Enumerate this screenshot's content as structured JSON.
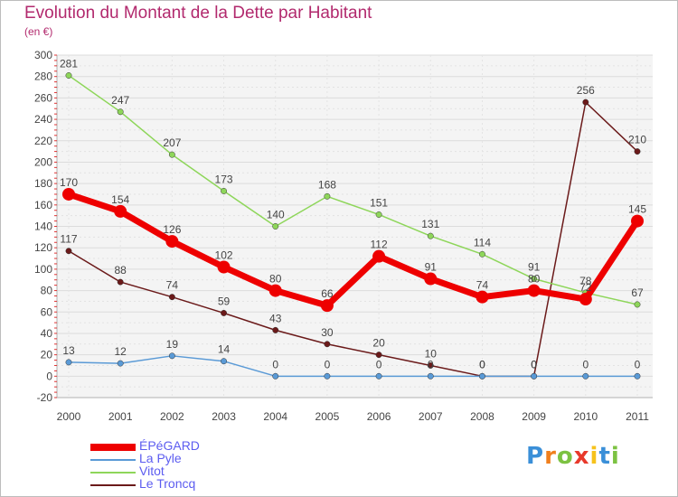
{
  "header": {
    "title": "Evolution du Montant de la Dette par Habitant",
    "subtitle": "(en €)"
  },
  "chart_data": {
    "type": "line",
    "title": "Evolution du Montant de la Dette par Habitant",
    "ylabel": "(en €)",
    "xlabel": "",
    "ylim": [
      -20,
      300
    ],
    "yticks": [
      -20,
      0,
      20,
      40,
      60,
      80,
      100,
      120,
      140,
      160,
      180,
      200,
      220,
      240,
      260,
      280,
      300
    ],
    "categories": [
      "2000",
      "2001",
      "2002",
      "2003",
      "2004",
      "2005",
      "2006",
      "2007",
      "2008",
      "2009",
      "2010",
      "2011"
    ],
    "grid": true,
    "legend_position": "bottom-left",
    "series": [
      {
        "name": "Le Troncq",
        "color": "#6b1a1a",
        "values": [
          117,
          88,
          74,
          59,
          43,
          30,
          20,
          10,
          0,
          0,
          256,
          210
        ]
      },
      {
        "name": "Vitot",
        "color": "#8ed65a",
        "values": [
          281,
          247,
          207,
          173,
          140,
          168,
          151,
          131,
          114,
          91,
          78,
          67
        ]
      },
      {
        "name": "La Pyle",
        "color": "#5a9ad6",
        "values": [
          13,
          12,
          19,
          14,
          0,
          0,
          0,
          0,
          0,
          0,
          0,
          0
        ]
      },
      {
        "name": "ÉPéGARD",
        "color": "#ee0000",
        "values": [
          170,
          154,
          126,
          102,
          80,
          66,
          112,
          91,
          74,
          80,
          72,
          145
        ]
      }
    ]
  },
  "legend": [
    {
      "name": "ÉPéGARD",
      "color": "#ee0000"
    },
    {
      "name": "La Pyle",
      "color": "#5a9ad6"
    },
    {
      "name": "Vitot",
      "color": "#8ed65a"
    },
    {
      "name": "Le Troncq",
      "color": "#6b1a1a"
    }
  ],
  "logo": {
    "letters": [
      "P",
      "r",
      "o",
      "x",
      "i",
      "t",
      "i"
    ],
    "colors": [
      "#3a8fd8",
      "#f07f1d",
      "#7cc242",
      "#e8392b",
      "#f6c21c",
      "#3a8fd8",
      "#7cc242"
    ]
  }
}
